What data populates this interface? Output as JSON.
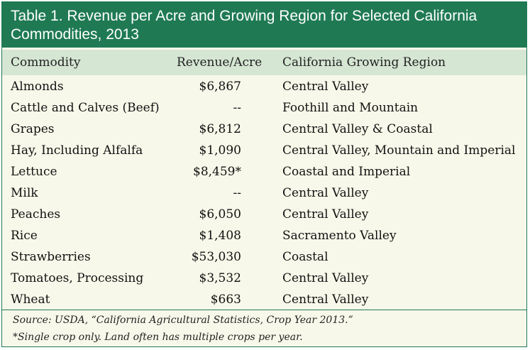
{
  "title": "Table 1. Revenue per Acre and Growing Region for Selected California Commodities, 2013",
  "columns": [
    "Commodity",
    "Revenue/Acre",
    "California Growing Region"
  ],
  "rows": [
    {
      "commodity": "Almonds",
      "revenue": "$6,867",
      "region": "Central Valley"
    },
    {
      "commodity": "Cattle and Calves (Beef)",
      "revenue": "--",
      "region": "Foothill and Mountain"
    },
    {
      "commodity": "Grapes",
      "revenue": "$6,812",
      "region": "Central Valley & Coastal"
    },
    {
      "commodity": "Hay, Including Alfalfa",
      "revenue": "$1,090",
      "region": "Central Valley, Mountain and Imperial"
    },
    {
      "commodity": "Lettuce",
      "revenue": "$8,459*",
      "region": "Coastal and Imperial"
    },
    {
      "commodity": "Milk",
      "revenue": "--",
      "region": "Central Valley"
    },
    {
      "commodity": "Peaches",
      "revenue": "$6,050",
      "region": "Central Valley"
    },
    {
      "commodity": "Rice",
      "revenue": "$1,408",
      "region": "Sacramento Valley"
    },
    {
      "commodity": "Strawberries",
      "revenue": "$53,030",
      "region": "Coastal"
    },
    {
      "commodity": "Tomatoes, Processing",
      "revenue": "$3,532",
      "region": "Central Valley"
    },
    {
      "commodity": "Wheat",
      "revenue": "$663",
      "region": "Central Valley"
    }
  ],
  "source": "Source: USDA, “California Agricultural Statistics, Crop Year 2013.”",
  "footnote": "*Single crop only. Land often has multiple crops per year.",
  "colors": {
    "title_bg": "#1f7a54",
    "header_bg": "#d5e6d3",
    "body_bg": "#f8f8ea"
  }
}
